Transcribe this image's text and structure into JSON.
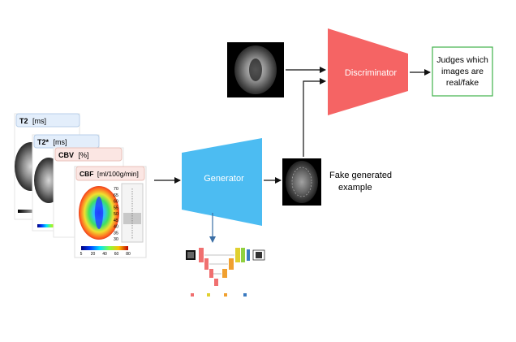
{
  "diagram": {
    "generator_label": "Generator",
    "discriminator_label": "Discriminator",
    "output_box_lines": [
      "Judges which",
      "images are",
      "real/fake"
    ],
    "fake_caption_lines": [
      "Fake generated",
      "example"
    ],
    "input_maps": [
      {
        "title_bold": "T2",
        "title_unit": "[ms]"
      },
      {
        "title_bold": "T2*",
        "title_unit": "[ms]"
      },
      {
        "title_bold": "CBV",
        "title_unit": "[%]"
      },
      {
        "title_bold": "CBF",
        "title_unit": "[ml/100g/min]"
      }
    ],
    "cbf_scale_ticks": [
      "70",
      "65",
      "60",
      "55",
      "50",
      "45",
      "40",
      "35",
      "30"
    ],
    "cbf_colorbar_ticks": [
      "5",
      "20",
      "40",
      "60",
      "80"
    ],
    "colors": {
      "generator": "#4cbcf2",
      "discriminator": "#f56464",
      "output_box_border": "#3fb24a",
      "arrow": "#111111",
      "arrow_down": "#3a6ea5"
    }
  }
}
